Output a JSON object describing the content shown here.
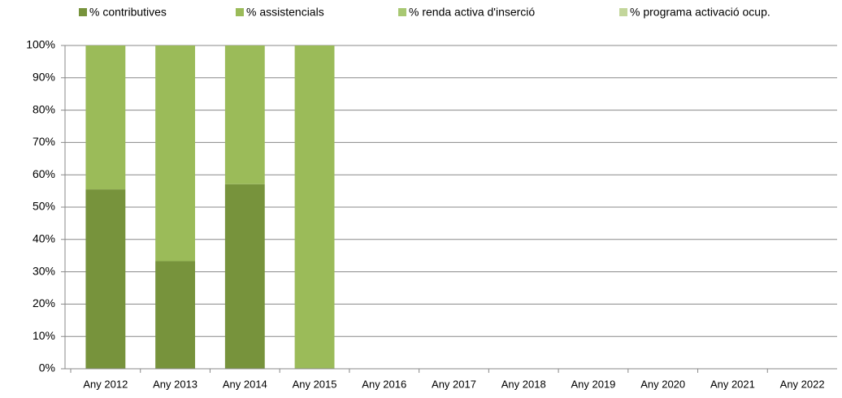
{
  "chart_data": {
    "type": "stacked_bar",
    "categories": [
      "Any 2012",
      "Any 2013",
      "Any 2014",
      "Any 2015",
      "Any 2016",
      "Any 2017",
      "Any 2018",
      "Any 2019",
      "Any 2020",
      "Any 2021",
      "Any 2022"
    ],
    "series": [
      {
        "name": "% contributives",
        "color": "#77933c",
        "values": [
          55.5,
          33.3,
          57.1,
          0,
          null,
          null,
          null,
          null,
          null,
          null,
          null
        ]
      },
      {
        "name": "% assistencials",
        "color": "#9bbb59",
        "values": [
          44.5,
          66.7,
          42.9,
          100,
          null,
          null,
          null,
          null,
          null,
          null,
          null
        ]
      },
      {
        "name": "% renda activa d'inserció",
        "color": "#a8c872",
        "values": [
          0,
          0,
          0,
          0,
          null,
          null,
          null,
          null,
          null,
          null,
          null
        ]
      },
      {
        "name": "% programa activació ocup.",
        "color": "#c3d69b",
        "values": [
          0,
          0,
          0,
          0,
          null,
          null,
          null,
          null,
          null,
          null,
          null
        ]
      }
    ],
    "ylim": [
      0,
      100
    ],
    "yticks": [
      {
        "value": 0,
        "label": "0%"
      },
      {
        "value": 10,
        "label": "10%"
      },
      {
        "value": 20,
        "label": "20%"
      },
      {
        "value": 30,
        "label": "30%"
      },
      {
        "value": 40,
        "label": "40%"
      },
      {
        "value": 50,
        "label": "50%"
      },
      {
        "value": 60,
        "label": "60%"
      },
      {
        "value": 70,
        "label": "70%"
      },
      {
        "value": 80,
        "label": "80%"
      },
      {
        "value": 90,
        "label": "90%"
      },
      {
        "value": 100,
        "label": "100%"
      }
    ],
    "grid": true,
    "legend": "top"
  }
}
